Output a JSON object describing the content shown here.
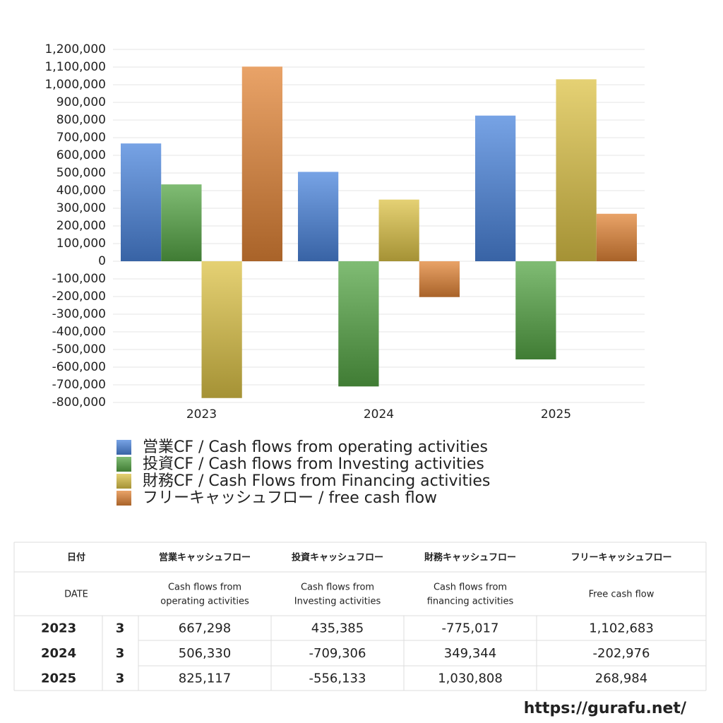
{
  "chart_data": {
    "type": "bar",
    "categories": [
      "2023",
      "2024",
      "2025"
    ],
    "series": [
      {
        "name": "営業CF / Cash flows from operating activities",
        "color": "#4a84dc",
        "values": [
          667298,
          506330,
          825117
        ]
      },
      {
        "name": "投資CF / Cash flows from Investing activities",
        "color": "#55a545",
        "values": [
          435385,
          -709306,
          -556133
        ]
      },
      {
        "name": "財務CF / Cash Flows from Financing activities",
        "color": "#dcc246",
        "values": [
          -775017,
          349344,
          1030808
        ]
      },
      {
        "name": "フリーキャッシュフロー / free cash flow",
        "color": "#e18436",
        "values": [
          1102683,
          -202976,
          268984
        ]
      }
    ],
    "ylim": [
      -800000,
      1200000
    ],
    "yticks": [
      {
        "value": -800000,
        "label": "-800,000"
      },
      {
        "value": -700000,
        "label": "-700,000"
      },
      {
        "value": -600000,
        "label": "-600,000"
      },
      {
        "value": -500000,
        "label": "-500,000"
      },
      {
        "value": -400000,
        "label": "-400,000"
      },
      {
        "value": -300000,
        "label": "-300,000"
      },
      {
        "value": -200000,
        "label": "-200,000"
      },
      {
        "value": -100000,
        "label": "-100,000"
      },
      0,
      {
        "value": 100000,
        "label": "100,000"
      },
      {
        "value": 200000,
        "label": "200,000"
      },
      {
        "value": 300000,
        "label": "300,000"
      },
      {
        "value": 400000,
        "label": "400,000"
      },
      {
        "value": 500000,
        "label": "500,000"
      },
      {
        "value": 600000,
        "label": "600,000"
      },
      {
        "value": 700000,
        "label": "700,000"
      },
      {
        "value": 800000,
        "label": "800,000"
      },
      {
        "value": 900000,
        "label": "900,000"
      },
      {
        "value": 1000000,
        "label": "1,000,000"
      },
      {
        "value": 1100000,
        "label": "1,100,000"
      },
      {
        "value": 1200000,
        "label": "1,200,000"
      }
    ],
    "grid": true
  },
  "table": {
    "header": {
      "date_label": "日付",
      "columns": [
        "営業キャッシュフロー",
        "投資キャッシュフロー",
        "財務キャッシュフロー",
        "フリーキャッシュフロー"
      ]
    },
    "subheader": {
      "date_label": "DATE",
      "columns": [
        [
          "Cash flows from",
          "operating activities"
        ],
        [
          "Cash flows from",
          "Investing activities"
        ],
        [
          "Cash flows from",
          "financing activities"
        ],
        [
          "Free cash flow"
        ]
      ]
    },
    "rows": [
      [
        "2023",
        "3",
        "667,298",
        "435,385",
        "-775,017",
        "1,102,683"
      ],
      [
        "2024",
        "3",
        "506,330",
        "-709,306",
        "349,344",
        "-202,976"
      ],
      [
        "2025",
        "3",
        "825,117",
        "-556,133",
        "1,030,808",
        "268,984"
      ]
    ],
    "negative_color": "#d0462c"
  },
  "footer": {
    "url": "https://gurafu.net/"
  }
}
